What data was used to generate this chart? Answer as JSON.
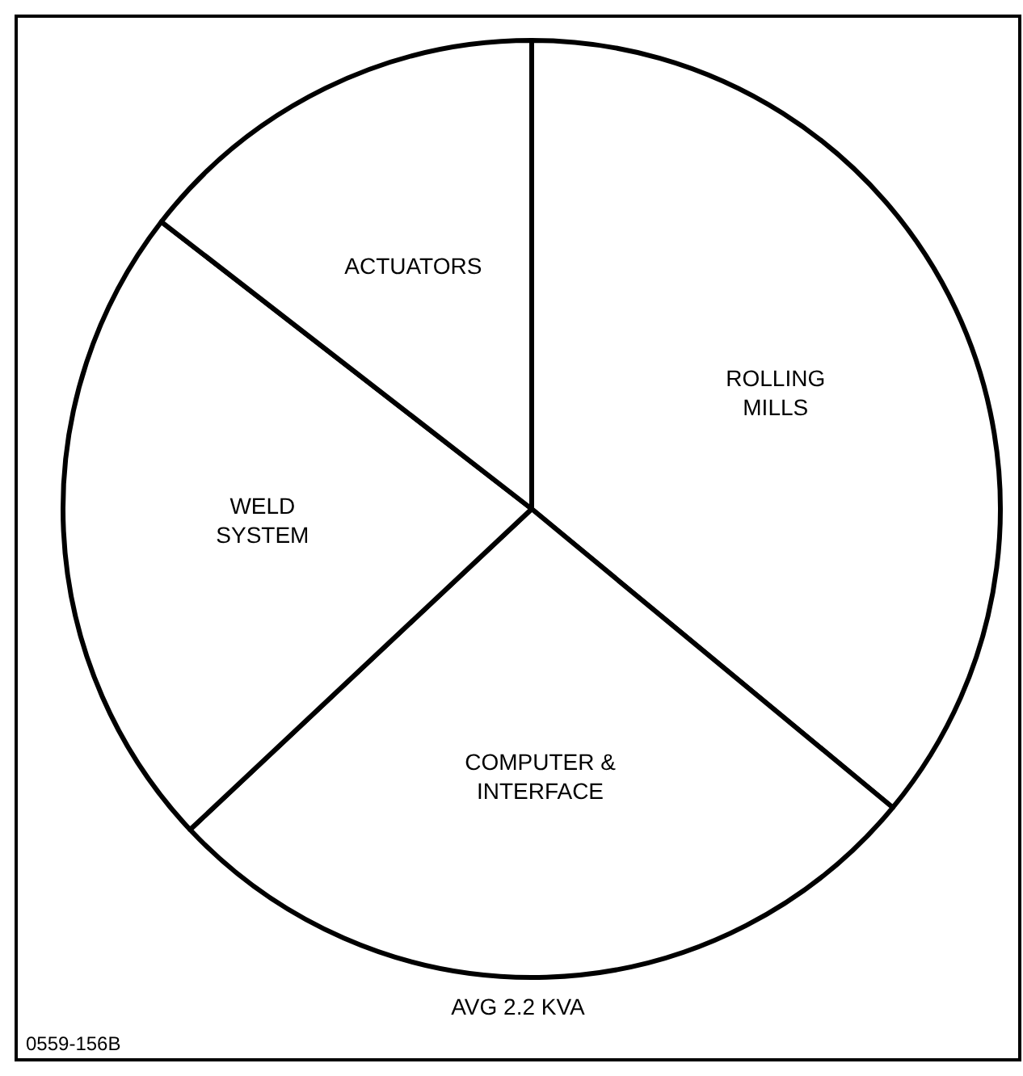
{
  "chart_data": {
    "type": "pie",
    "categories": [
      "ROLLING MILLS",
      "COMPUTER & INTERFACE",
      "WELD SYSTEM",
      "ACTUATORS"
    ],
    "values": [
      36,
      27,
      22.5,
      14.5
    ],
    "colors": [
      "#ffffff",
      "#ffffff",
      "#ffffff",
      "#ffffff"
    ],
    "annotations": [
      "AVG 2.2 KVA",
      "0559-156B"
    ]
  }
}
